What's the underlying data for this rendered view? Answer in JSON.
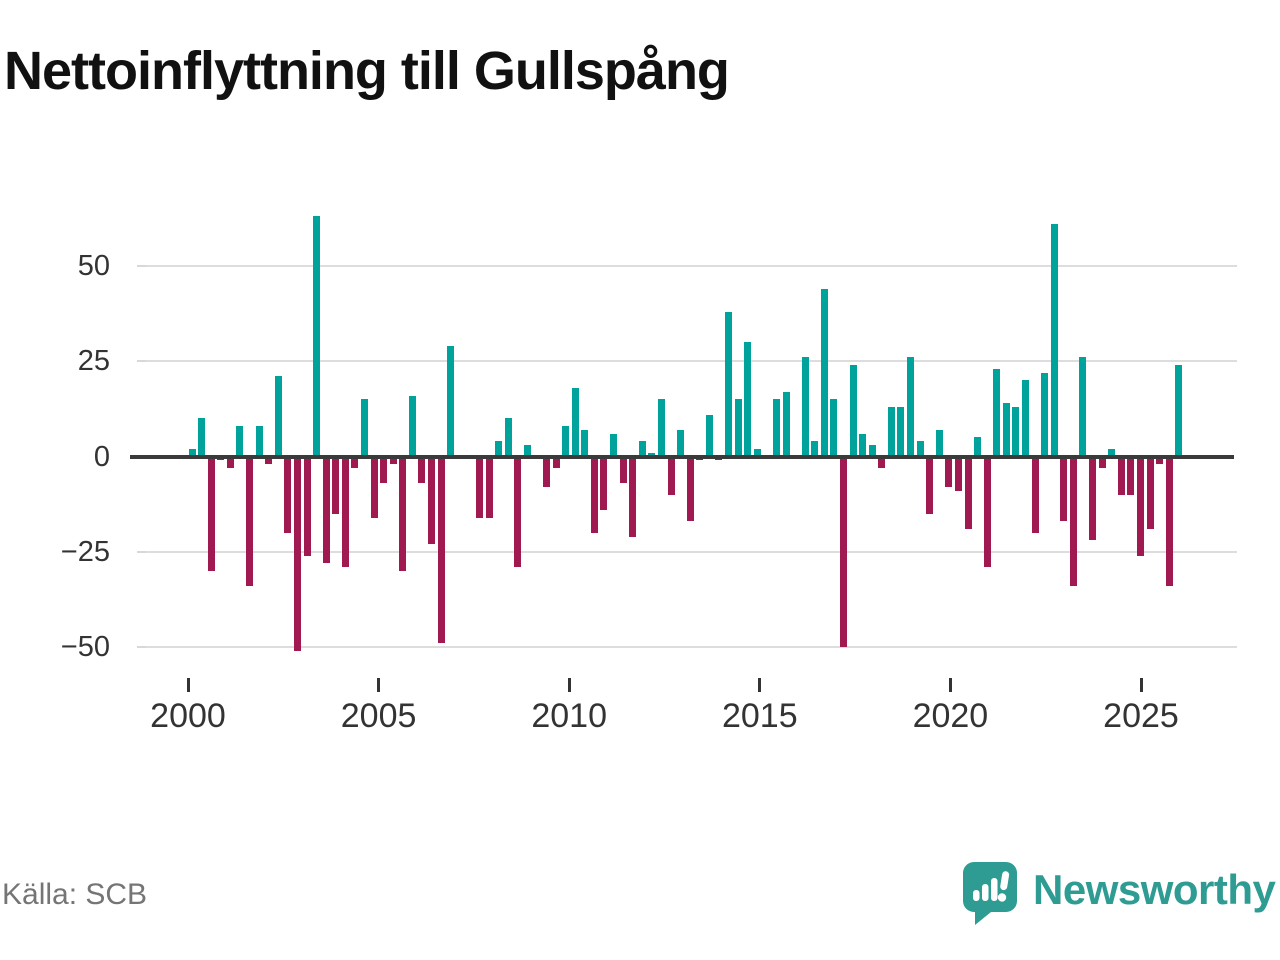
{
  "title": "Nettoinflyttning till Gullspång",
  "source": "Källa: SCB",
  "logo": {
    "brand": "Newsworthy",
    "icon": "bar-chart-speech-bubble-icon"
  },
  "colors": {
    "positive_bar": "#00a39b",
    "negative_bar": "#a01950",
    "zero_line": "#3a3a3a",
    "gridline": "#dddddd",
    "axis_text": "#333333",
    "source_text": "#757575",
    "brand_teal": "#2e9c92",
    "title_text": "#111111"
  },
  "chart_data": {
    "type": "bar",
    "title": "Nettoinflyttning till Gullspång",
    "xlabel": "",
    "ylabel": "",
    "grid": true,
    "legend": "none",
    "y_ticks": [
      50,
      25,
      0,
      -25,
      -50
    ],
    "ylim": [
      -55,
      66
    ],
    "x_tick_labels": [
      "2000",
      "2005",
      "2010",
      "2015",
      "2020",
      "2025"
    ],
    "categories": [
      "2000 Q1",
      "2000 Q2",
      "2000 Q3",
      "2000 Q4",
      "2001 Q1",
      "2001 Q2",
      "2001 Q3",
      "2001 Q4",
      "2002 Q1",
      "2002 Q2",
      "2002 Q3",
      "2002 Q4",
      "2003 Q1",
      "2003 Q2",
      "2003 Q3",
      "2003 Q4",
      "2004 Q1",
      "2004 Q2",
      "2004 Q3",
      "2004 Q4",
      "2005 Q1",
      "2005 Q2",
      "2005 Q3",
      "2005 Q4",
      "2006 Q1",
      "2006 Q2",
      "2006 Q3",
      "2006 Q4",
      "2007 Q1",
      "2007 Q2",
      "2007 Q3",
      "2007 Q4",
      "2008 Q1",
      "2008 Q2",
      "2008 Q3",
      "2008 Q4",
      "2009 Q1",
      "2009 Q2",
      "2009 Q3",
      "2009 Q4",
      "2010 Q1",
      "2010 Q2",
      "2010 Q3",
      "2010 Q4",
      "2011 Q1",
      "2011 Q2",
      "2011 Q3",
      "2011 Q4",
      "2012 Q1",
      "2012 Q2",
      "2012 Q3",
      "2012 Q4",
      "2013 Q1",
      "2013 Q2",
      "2013 Q3",
      "2013 Q4",
      "2014 Q1",
      "2014 Q2",
      "2014 Q3",
      "2014 Q4",
      "2015 Q1",
      "2015 Q2",
      "2015 Q3",
      "2015 Q4",
      "2016 Q1",
      "2016 Q2",
      "2016 Q3",
      "2016 Q4",
      "2017 Q1",
      "2017 Q2",
      "2017 Q3",
      "2017 Q4",
      "2018 Q1",
      "2018 Q2",
      "2018 Q3",
      "2018 Q4",
      "2019 Q1",
      "2019 Q2",
      "2019 Q3",
      "2019 Q4",
      "2020 Q1",
      "2020 Q2",
      "2020 Q3",
      "2020 Q4",
      "2021 Q1",
      "2021 Q2",
      "2021 Q3",
      "2021 Q4",
      "2022 Q1",
      "2022 Q2",
      "2022 Q3",
      "2022 Q4",
      "2023 Q1",
      "2023 Q2",
      "2023 Q3",
      "2023 Q4",
      "2024 Q1",
      "2024 Q2",
      "2024 Q3",
      "2024 Q4",
      "2025 Q1",
      "2025 Q2",
      "2025 Q3",
      "2025 Q4"
    ],
    "values": [
      2,
      10,
      -30,
      -1,
      -3,
      8,
      -34,
      8,
      -2,
      21,
      -20,
      -51,
      -26,
      63,
      -28,
      -15,
      -29,
      -3,
      15,
      -16,
      -7,
      -2,
      -30,
      16,
      -7,
      -23,
      -49,
      29,
      0,
      0,
      -16,
      -16,
      4,
      10,
      -29,
      3,
      0,
      -8,
      -3,
      8,
      18,
      7,
      -20,
      -14,
      6,
      -7,
      -21,
      4,
      1,
      15,
      -10,
      7,
      -17,
      -1,
      11,
      -1,
      38,
      15,
      30,
      2,
      0,
      15,
      17,
      0,
      26,
      4,
      44,
      15,
      -50,
      24,
      6,
      3,
      -3,
      13,
      13,
      26,
      4,
      -15,
      7,
      -8,
      -9,
      -19,
      5,
      -29,
      23,
      14,
      13,
      20,
      -20,
      22,
      61,
      -17,
      -34,
      26,
      -22,
      -3,
      2,
      -10,
      -10,
      -26,
      -19,
      -2,
      -34,
      24
    ]
  }
}
